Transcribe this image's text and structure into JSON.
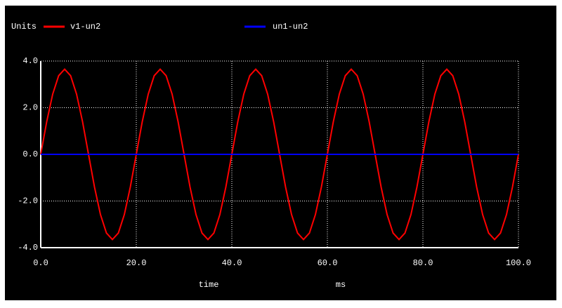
{
  "chart_data": {
    "type": "line",
    "ylabel": "Units",
    "xlabel": "time",
    "xunit": "ms",
    "xlim": [
      0,
      100
    ],
    "ylim": [
      -4,
      4
    ],
    "xticks": [
      {
        "value": 0,
        "label": "0.0"
      },
      {
        "value": 20,
        "label": "20.0"
      },
      {
        "value": 40,
        "label": "40.0"
      },
      {
        "value": 60,
        "label": "60.0"
      },
      {
        "value": 80,
        "label": "80.0"
      },
      {
        "value": 100,
        "label": "100.0"
      }
    ],
    "yticks": [
      {
        "value": -4,
        "label": "-4.0"
      },
      {
        "value": -2,
        "label": "-2.0"
      },
      {
        "value": 0,
        "label": "0.0"
      },
      {
        "value": 2,
        "label": "2.0"
      },
      {
        "value": 4,
        "label": "4.0"
      }
    ],
    "grid": true,
    "series": [
      {
        "name": "v1-un2",
        "color": "#ff0000",
        "x": [
          0,
          1.25,
          2.5,
          3.75,
          5,
          6.25,
          7.5,
          8.75,
          10,
          11.25,
          12.5,
          13.75,
          15,
          16.25,
          17.5,
          18.75,
          20,
          21.25,
          22.5,
          23.75,
          25,
          26.25,
          27.5,
          28.75,
          30,
          31.25,
          32.5,
          33.75,
          35,
          36.25,
          37.5,
          38.75,
          40,
          41.25,
          42.5,
          43.75,
          45,
          46.25,
          47.5,
          48.75,
          50,
          51.25,
          52.5,
          53.75,
          55,
          56.25,
          57.5,
          58.75,
          60,
          61.25,
          62.5,
          63.75,
          65,
          66.25,
          67.5,
          68.75,
          70,
          71.25,
          72.5,
          73.75,
          75,
          76.25,
          77.5,
          78.75,
          80,
          81.25,
          82.5,
          83.75,
          85,
          86.25,
          87.5,
          88.75,
          90,
          91.25,
          92.5,
          93.75,
          95,
          96.25,
          97.5,
          98.75,
          100
        ],
        "values": [
          0,
          1.4,
          2.58,
          3.37,
          3.65,
          3.37,
          2.58,
          1.4,
          0,
          -1.4,
          -2.58,
          -3.37,
          -3.65,
          -3.37,
          -2.58,
          -1.4,
          0,
          1.4,
          2.58,
          3.37,
          3.65,
          3.37,
          2.58,
          1.4,
          0,
          -1.4,
          -2.58,
          -3.37,
          -3.65,
          -3.37,
          -2.58,
          -1.4,
          0,
          1.4,
          2.58,
          3.37,
          3.65,
          3.37,
          2.58,
          1.4,
          0,
          -1.4,
          -2.58,
          -3.37,
          -3.65,
          -3.37,
          -2.58,
          -1.4,
          0,
          1.4,
          2.58,
          3.37,
          3.65,
          3.37,
          2.58,
          1.4,
          0,
          -1.4,
          -2.58,
          -3.37,
          -3.65,
          -3.37,
          -2.58,
          -1.4,
          0,
          1.4,
          2.58,
          3.37,
          3.65,
          3.37,
          2.58,
          1.4,
          0,
          -1.4,
          -2.58,
          -3.37,
          -3.65,
          -3.37,
          -2.58,
          -1.4,
          0
        ]
      },
      {
        "name": "un1-un2",
        "color": "#0000ff",
        "x": [
          0,
          100
        ],
        "values": [
          0,
          0
        ]
      }
    ]
  }
}
